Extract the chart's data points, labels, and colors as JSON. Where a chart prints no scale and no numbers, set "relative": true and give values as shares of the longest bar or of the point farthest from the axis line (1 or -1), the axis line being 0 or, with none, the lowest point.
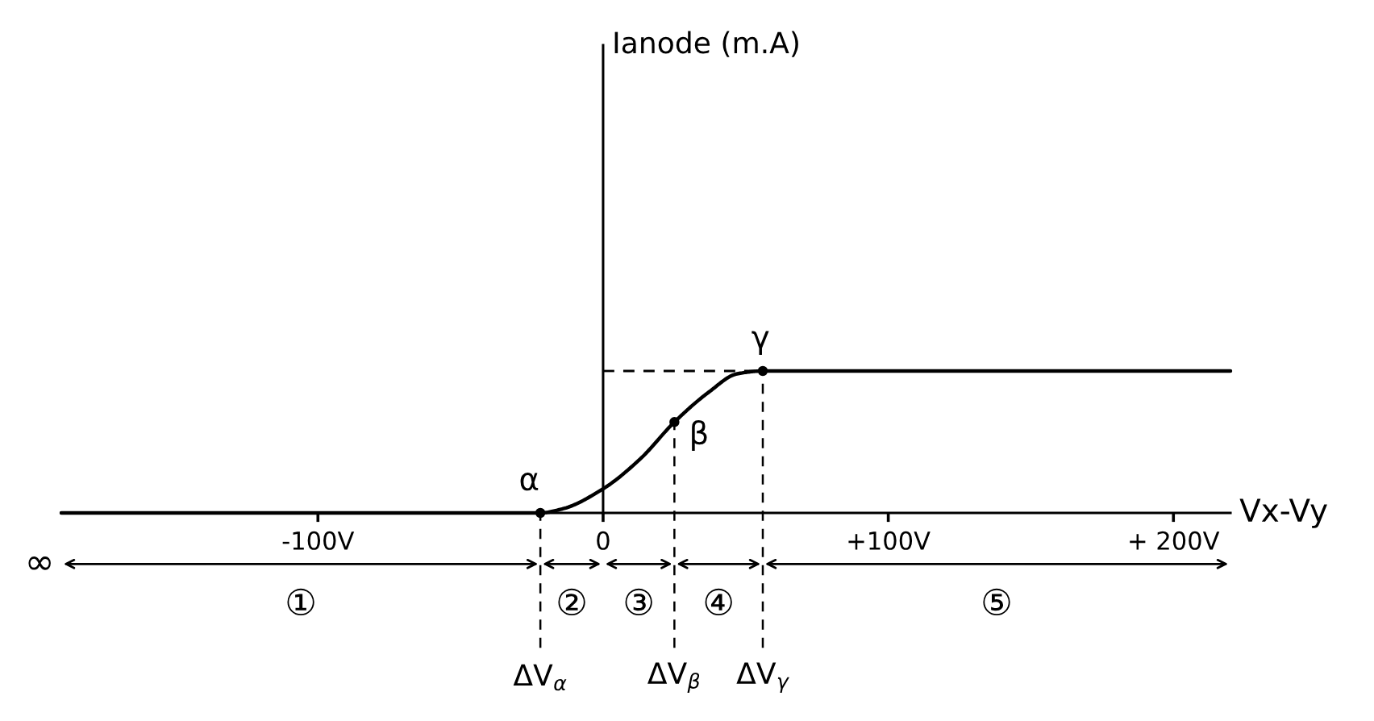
{
  "chart_data": {
    "type": "line",
    "relative": true,
    "xlabel": "Vx-Vy",
    "xlim": [
      -190,
      220
    ],
    "xticks": [
      {
        "value": -100,
        "label": "-100V"
      },
      0,
      {
        "value": 100,
        "label": "+100V"
      },
      {
        "value": 200,
        "label": "+ 200V"
      }
    ],
    "tick_labels": "x",
    "series": [
      {
        "color": "#000000",
        "x": [
          -190,
          -22,
          -14,
          0,
          13,
          25,
          37,
          47,
          56,
          220
        ],
        "values": [
          0,
          0,
          0.03,
          0.17,
          0.38,
          0.64,
          0.85,
          0.98,
          1,
          1
        ]
      },
      {
        "color": "#000000",
        "line_style": "dashed",
        "x": [
          0,
          56
        ],
        "values": [
          1,
          1
        ]
      }
    ],
    "ref_lines": [
      {
        "axis": "x",
        "value": -22,
        "label": "ΔV$_{α}$",
        "line_style": "dashed"
      },
      {
        "axis": "x",
        "value": 25,
        "label": "ΔV$_{β}$",
        "line_style": "dashed"
      },
      {
        "axis": "x",
        "value": 56,
        "label": "ΔV$_{γ}$",
        "line_style": "dashed"
      }
    ],
    "annotations": [
      "Ianode (m.A)",
      "∞",
      "①",
      "②",
      "③",
      "④",
      "⑤",
      {
        "text": "α",
        "x": -22,
        "y": 0
      },
      {
        "text": "β",
        "x": 25,
        "y": 0.64
      },
      {
        "text": "γ",
        "x": 56,
        "y": 1
      }
    ]
  }
}
